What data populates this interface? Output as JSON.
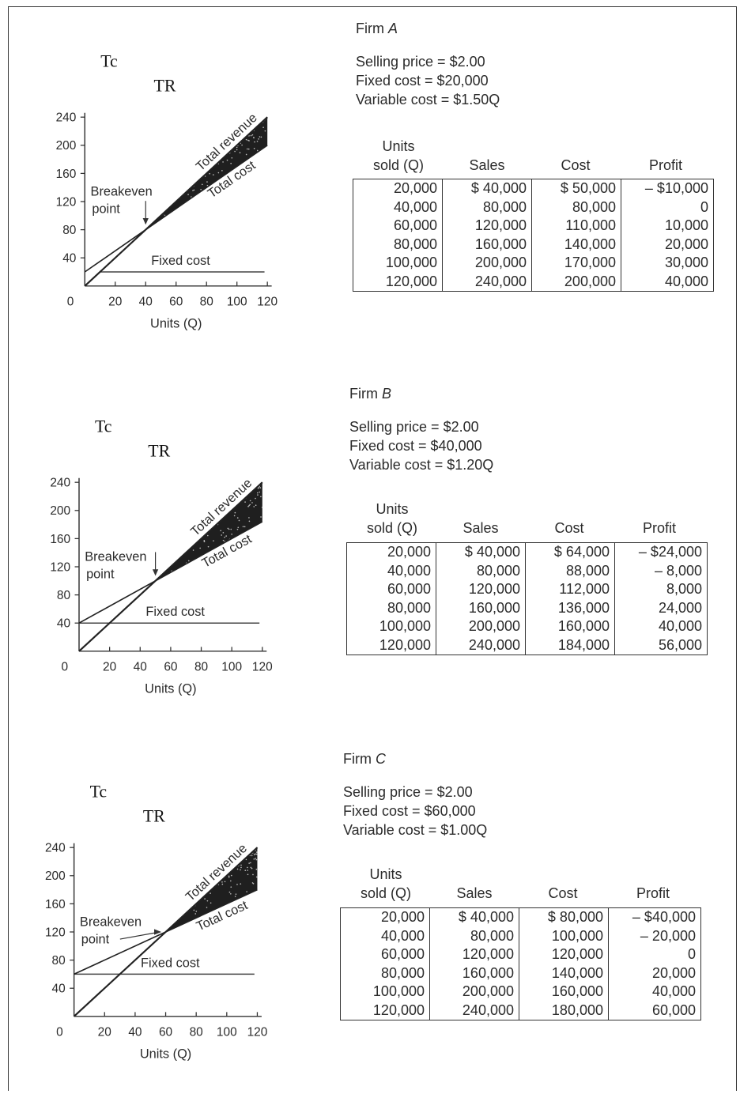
{
  "firms": [
    {
      "name": "Firm A",
      "header_prefix": "Firm ",
      "header_letter": "A",
      "selling_price": "Selling price = $2.00",
      "fixed_cost": "Fixed cost = $20,000",
      "variable_cost": "Variable cost = $1.50Q",
      "table_headers": [
        "Units sold (Q)",
        "Sales",
        "Cost",
        "Profit"
      ],
      "table_rows": [
        [
          "20,000",
          "$ 40,000",
          "$ 50,000",
          "– $10,000"
        ],
        [
          "40,000",
          "80,000",
          "80,000",
          "0"
        ],
        [
          "60,000",
          "120,000",
          "110,000",
          "10,000"
        ],
        [
          "80,000",
          "160,000",
          "140,000",
          "20,000"
        ],
        [
          "100,000",
          "200,000",
          "170,000",
          "30,000"
        ],
        [
          "120,000",
          "240,000",
          "200,000",
          "40,000"
        ]
      ],
      "chart_data": {
        "type": "line",
        "label_tc": "Tc",
        "label_tr": "TR",
        "xlabel": "Units (Q)",
        "x_ticks": [
          "0",
          "20",
          "40",
          "60",
          "80",
          "100",
          "120"
        ],
        "y_ticks": [
          "40",
          "80",
          "120",
          "160",
          "200",
          "240"
        ],
        "xlim": [
          0,
          120
        ],
        "ylim": [
          0,
          240
        ],
        "series": [
          {
            "name": "Total revenue",
            "x": [
              0,
              120
            ],
            "y": [
              0,
              240
            ]
          },
          {
            "name": "Total cost",
            "x": [
              0,
              120
            ],
            "y": [
              20,
              200
            ]
          },
          {
            "name": "Fixed cost",
            "x": [
              0,
              120
            ],
            "y": [
              20,
              20
            ]
          }
        ],
        "annotation": "Breakeven point",
        "breakeven": [
          40,
          80
        ]
      }
    },
    {
      "name": "Firm B",
      "header_prefix": "Firm ",
      "header_letter": "B",
      "selling_price": "Selling price = $2.00",
      "fixed_cost": "Fixed cost = $40,000",
      "variable_cost": "Variable cost = $1.20Q",
      "table_headers": [
        "Units sold (Q)",
        "Sales",
        "Cost",
        "Profit"
      ],
      "table_rows": [
        [
          "20,000",
          "$ 40,000",
          "$ 64,000",
          "– $24,000"
        ],
        [
          "40,000",
          "80,000",
          "88,000",
          "– 8,000"
        ],
        [
          "60,000",
          "120,000",
          "112,000",
          "8,000"
        ],
        [
          "80,000",
          "160,000",
          "136,000",
          "24,000"
        ],
        [
          "100,000",
          "200,000",
          "160,000",
          "40,000"
        ],
        [
          "120,000",
          "240,000",
          "184,000",
          "56,000"
        ]
      ],
      "chart_data": {
        "type": "line",
        "label_tc": "Tc",
        "label_tr": "TR",
        "xlabel": "Units (Q)",
        "x_ticks": [
          "0",
          "20",
          "40",
          "60",
          "80",
          "100",
          "120"
        ],
        "y_ticks": [
          "40",
          "80",
          "120",
          "160",
          "200",
          "240"
        ],
        "xlim": [
          0,
          120
        ],
        "ylim": [
          0,
          240
        ],
        "series": [
          {
            "name": "Total revenue",
            "x": [
              0,
              120
            ],
            "y": [
              0,
              240
            ]
          },
          {
            "name": "Total cost",
            "x": [
              0,
              120
            ],
            "y": [
              40,
              184
            ]
          },
          {
            "name": "Fixed cost",
            "x": [
              0,
              120
            ],
            "y": [
              40,
              40
            ]
          }
        ],
        "annotation": "Breakeven point",
        "breakeven": [
          50,
          100
        ]
      }
    },
    {
      "name": "Firm C",
      "header_prefix": "Firm ",
      "header_letter": "C",
      "selling_price": "Selling price = $2.00",
      "fixed_cost": "Fixed cost = $60,000",
      "variable_cost": "Variable cost = $1.00Q",
      "table_headers": [
        "Units sold (Q)",
        "Sales",
        "Cost",
        "Profit"
      ],
      "table_rows": [
        [
          "20,000",
          "$ 40,000",
          "$ 80,000",
          "– $40,000"
        ],
        [
          "40,000",
          "80,000",
          "100,000",
          "– 20,000"
        ],
        [
          "60,000",
          "120,000",
          "120,000",
          "0"
        ],
        [
          "80,000",
          "160,000",
          "140,000",
          "20,000"
        ],
        [
          "100,000",
          "200,000",
          "160,000",
          "40,000"
        ],
        [
          "120,000",
          "240,000",
          "180,000",
          "60,000"
        ]
      ],
      "chart_data": {
        "type": "line",
        "label_tc": "Tc",
        "label_tr": "TR",
        "xlabel": "Units (Q)",
        "x_ticks": [
          "0",
          "20",
          "40",
          "60",
          "80",
          "100",
          "120"
        ],
        "y_ticks": [
          "40",
          "80",
          "120",
          "160",
          "200",
          "240"
        ],
        "xlim": [
          0,
          120
        ],
        "ylim": [
          0,
          240
        ],
        "series": [
          {
            "name": "Total revenue",
            "x": [
              0,
              120
            ],
            "y": [
              0,
              240
            ]
          },
          {
            "name": "Total cost",
            "x": [
              0,
              120
            ],
            "y": [
              60,
              180
            ]
          },
          {
            "name": "Fixed cost",
            "x": [
              0,
              120
            ],
            "y": [
              60,
              60
            ]
          }
        ],
        "annotation": "Breakeven point",
        "breakeven": [
          60,
          120
        ]
      }
    }
  ]
}
